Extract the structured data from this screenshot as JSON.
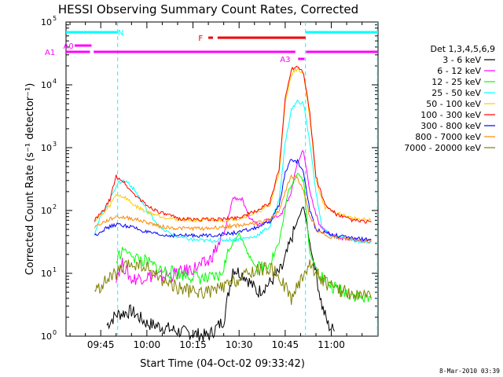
{
  "chart_data": {
    "type": "line",
    "title": "HESSI Observing Summary Count Rates, Corrected",
    "xlabel": "Start Time (04-Oct-02 09:33:42)",
    "ylabel": "Corrected Count Rate (s⁻¹ detector⁻¹)",
    "yscale": "log",
    "ylim": [
      1,
      100000
    ],
    "xlim_minutes": [
      573.7,
      675.2
    ],
    "x_ticks": [
      {
        "t": 585,
        "label": "09:45"
      },
      {
        "t": 600,
        "label": "10:00"
      },
      {
        "t": 615,
        "label": "10:15"
      },
      {
        "t": 630,
        "label": "10:30"
      },
      {
        "t": 645,
        "label": "10:45"
      },
      {
        "t": 660,
        "label": "11:00"
      }
    ],
    "y_ticks": [
      {
        "v": 1,
        "base": "10",
        "exp": "0"
      },
      {
        "v": 10,
        "base": "10",
        "exp": "1"
      },
      {
        "v": 100,
        "base": "10",
        "exp": "2"
      },
      {
        "v": 1000,
        "base": "10",
        "exp": "3"
      },
      {
        "v": 10000,
        "base": "10",
        "exp": "4"
      },
      {
        "v": 100000,
        "base": "10",
        "exp": "5"
      }
    ],
    "legend_title": "Det 1,3,4,5,6,9",
    "series": [
      {
        "name": "3 - 6 keV",
        "color": "#000000",
        "points": [
          [
            587,
            1.5
          ],
          [
            590,
            2.2
          ],
          [
            595,
            2.5
          ],
          [
            600,
            1.6
          ],
          [
            605,
            1.4
          ],
          [
            610,
            1.2
          ],
          [
            615,
            1.1
          ],
          [
            620,
            1.0
          ],
          [
            625,
            1.8
          ],
          [
            628,
            12
          ],
          [
            632,
            9
          ],
          [
            636,
            5
          ],
          [
            640,
            7
          ],
          [
            644,
            12
          ],
          [
            648,
            50
          ],
          [
            651,
            120
          ],
          [
            653,
            30
          ],
          [
            655,
            10
          ],
          [
            657,
            3
          ],
          [
            659,
            1.5
          ],
          [
            661,
            1.2
          ]
        ]
      },
      {
        "name": "6 - 12 keV",
        "color": "#ff00ff",
        "points": [
          [
            590,
            9
          ],
          [
            592,
            14
          ],
          [
            595,
            8
          ],
          [
            600,
            9
          ],
          [
            605,
            9
          ],
          [
            610,
            10
          ],
          [
            615,
            12
          ],
          [
            620,
            15
          ],
          [
            625,
            40
          ],
          [
            628,
            160
          ],
          [
            631,
            150
          ],
          [
            633,
            80
          ],
          [
            636,
            60
          ],
          [
            640,
            75
          ],
          [
            644,
            90
          ],
          [
            647,
            200
          ],
          [
            649,
            600
          ],
          [
            651,
            900
          ],
          [
            653,
            200
          ],
          [
            656,
            60
          ],
          [
            660,
            40
          ],
          [
            665,
            35
          ],
          [
            670,
            33
          ],
          [
            673,
            32
          ]
        ]
      },
      {
        "name": "12 - 25 keV",
        "color": "#00ff00",
        "points": [
          [
            590,
            15
          ],
          [
            592,
            25
          ],
          [
            596,
            18
          ],
          [
            600,
            15
          ],
          [
            605,
            11
          ],
          [
            610,
            10
          ],
          [
            615,
            9
          ],
          [
            620,
            8
          ],
          [
            624,
            9
          ],
          [
            627,
            25
          ],
          [
            630,
            45
          ],
          [
            633,
            20
          ],
          [
            636,
            12
          ],
          [
            640,
            15
          ],
          [
            643,
            30
          ],
          [
            646,
            200
          ],
          [
            649,
            400
          ],
          [
            651,
            300
          ],
          [
            653,
            20
          ],
          [
            656,
            10
          ],
          [
            660,
            6
          ],
          [
            665,
            5
          ],
          [
            670,
            4
          ],
          [
            673,
            3.8
          ]
        ]
      },
      {
        "name": "25 - 50 keV",
        "color": "#00ffff",
        "points": [
          [
            583,
            45
          ],
          [
            585,
            80
          ],
          [
            588,
            150
          ],
          [
            590,
            250
          ],
          [
            592,
            300
          ],
          [
            594,
            280
          ],
          [
            597,
            180
          ],
          [
            600,
            100
          ],
          [
            605,
            50
          ],
          [
            610,
            38
          ],
          [
            615,
            34
          ],
          [
            620,
            33
          ],
          [
            625,
            34
          ],
          [
            630,
            35
          ],
          [
            635,
            38
          ],
          [
            640,
            55
          ],
          [
            643,
            150
          ],
          [
            645,
            1200
          ],
          [
            647,
            4000
          ],
          [
            649,
            5500
          ],
          [
            651,
            5000
          ],
          [
            653,
            1200
          ],
          [
            655,
            200
          ],
          [
            657,
            50
          ],
          [
            660,
            40
          ],
          [
            665,
            35
          ],
          [
            670,
            32
          ],
          [
            673,
            31
          ]
        ]
      },
      {
        "name": "50 - 100 keV",
        "color": "#ffcc00",
        "points": [
          [
            583,
            70
          ],
          [
            586,
            90
          ],
          [
            588,
            120
          ],
          [
            590,
            180
          ],
          [
            593,
            160
          ],
          [
            596,
            120
          ],
          [
            600,
            95
          ],
          [
            605,
            80
          ],
          [
            610,
            72
          ],
          [
            615,
            70
          ],
          [
            620,
            70
          ],
          [
            625,
            70
          ],
          [
            630,
            75
          ],
          [
            635,
            90
          ],
          [
            640,
            120
          ],
          [
            643,
            400
          ],
          [
            645,
            5000
          ],
          [
            647,
            15000
          ],
          [
            649,
            18000
          ],
          [
            651,
            15000
          ],
          [
            653,
            3000
          ],
          [
            655,
            300
          ],
          [
            658,
            110
          ],
          [
            662,
            90
          ],
          [
            667,
            75
          ],
          [
            673,
            70
          ]
        ]
      },
      {
        "name": "100 - 300 keV",
        "color": "#ff0000",
        "points": [
          [
            583,
            70
          ],
          [
            586,
            100
          ],
          [
            588,
            150
          ],
          [
            590,
            350
          ],
          [
            592,
            300
          ],
          [
            595,
            200
          ],
          [
            600,
            120
          ],
          [
            605,
            90
          ],
          [
            610,
            75
          ],
          [
            615,
            72
          ],
          [
            620,
            72
          ],
          [
            625,
            73
          ],
          [
            630,
            78
          ],
          [
            635,
            95
          ],
          [
            640,
            130
          ],
          [
            643,
            450
          ],
          [
            645,
            6000
          ],
          [
            647,
            18000
          ],
          [
            649,
            20000
          ],
          [
            651,
            16000
          ],
          [
            653,
            3500
          ],
          [
            655,
            350
          ],
          [
            658,
            120
          ],
          [
            662,
            85
          ],
          [
            667,
            70
          ],
          [
            673,
            65
          ]
        ]
      },
      {
        "name": "300 - 800 keV",
        "color": "#0000ff",
        "points": [
          [
            583,
            40
          ],
          [
            586,
            50
          ],
          [
            590,
            60
          ],
          [
            595,
            55
          ],
          [
            600,
            45
          ],
          [
            605,
            40
          ],
          [
            610,
            40
          ],
          [
            615,
            40
          ],
          [
            620,
            40
          ],
          [
            625,
            42
          ],
          [
            630,
            45
          ],
          [
            635,
            52
          ],
          [
            640,
            65
          ],
          [
            643,
            120
          ],
          [
            645,
            400
          ],
          [
            647,
            650
          ],
          [
            649,
            600
          ],
          [
            651,
            400
          ],
          [
            653,
            100
          ],
          [
            655,
            50
          ],
          [
            660,
            42
          ],
          [
            665,
            37
          ],
          [
            673,
            34
          ]
        ]
      },
      {
        "name": "800 - 7000 keV",
        "color": "#ff8800",
        "points": [
          [
            583,
            55
          ],
          [
            586,
            65
          ],
          [
            590,
            80
          ],
          [
            595,
            75
          ],
          [
            600,
            65
          ],
          [
            605,
            55
          ],
          [
            610,
            52
          ],
          [
            615,
            52
          ],
          [
            620,
            52
          ],
          [
            625,
            55
          ],
          [
            630,
            58
          ],
          [
            635,
            63
          ],
          [
            640,
            70
          ],
          [
            643,
            100
          ],
          [
            645,
            200
          ],
          [
            647,
            350
          ],
          [
            649,
            330
          ],
          [
            651,
            200
          ],
          [
            653,
            80
          ],
          [
            656,
            45
          ],
          [
            660,
            38
          ],
          [
            665,
            35
          ],
          [
            673,
            32
          ]
        ]
      },
      {
        "name": "7000 - 20000 keV",
        "color": "#808000",
        "points": [
          [
            583,
            5
          ],
          [
            586,
            7
          ],
          [
            590,
            10
          ],
          [
            595,
            14
          ],
          [
            600,
            12
          ],
          [
            605,
            8
          ],
          [
            610,
            6
          ],
          [
            615,
            5
          ],
          [
            620,
            5
          ],
          [
            625,
            6
          ],
          [
            630,
            8
          ],
          [
            635,
            11
          ],
          [
            640,
            12
          ],
          [
            643,
            9
          ],
          [
            645,
            6
          ],
          [
            647,
            4
          ],
          [
            649,
            6
          ],
          [
            651,
            10
          ],
          [
            653,
            14
          ],
          [
            656,
            9
          ],
          [
            660,
            6
          ],
          [
            665,
            5
          ],
          [
            673,
            4
          ]
        ]
      }
    ],
    "top_bars": [
      {
        "label": "N",
        "color": "#00ffff",
        "row": 1,
        "segments": [
          [
            573.7,
            590.5
          ],
          [
            651.6,
            675.2
          ]
        ],
        "label_t": 591.5
      },
      {
        "label": "F",
        "color": "#ee0000",
        "row": 2,
        "segments": [
          [
            620,
            621.5
          ],
          [
            623,
            651.6
          ]
        ],
        "label_t": 617.5
      },
      {
        "label": "A0",
        "color": "#ff00ff",
        "row": 3,
        "segments": [
          [
            576.5,
            582
          ]
        ],
        "label_t": 574.5
      },
      {
        "label": "A1",
        "color": "#ff00ff",
        "row": 4,
        "segments": [
          [
            573.7,
            581.5
          ],
          [
            582.7,
            648.3
          ],
          [
            651.8,
            675.2
          ]
        ],
        "label_t": 568.5
      },
      {
        "label": "A3",
        "color": "#ff00ff",
        "row": 5,
        "segments": [
          [
            649.2,
            651.3
          ]
        ],
        "label_t": 645.0
      }
    ],
    "vlines": [
      {
        "t": 590.5,
        "color": "#00ffff"
      },
      {
        "t": 651.6,
        "color": "#00ffff"
      },
      {
        "t": 675.0,
        "color": "#00ffff"
      }
    ]
  },
  "footer": {
    "date": "8-Mar-2010 03:39"
  }
}
